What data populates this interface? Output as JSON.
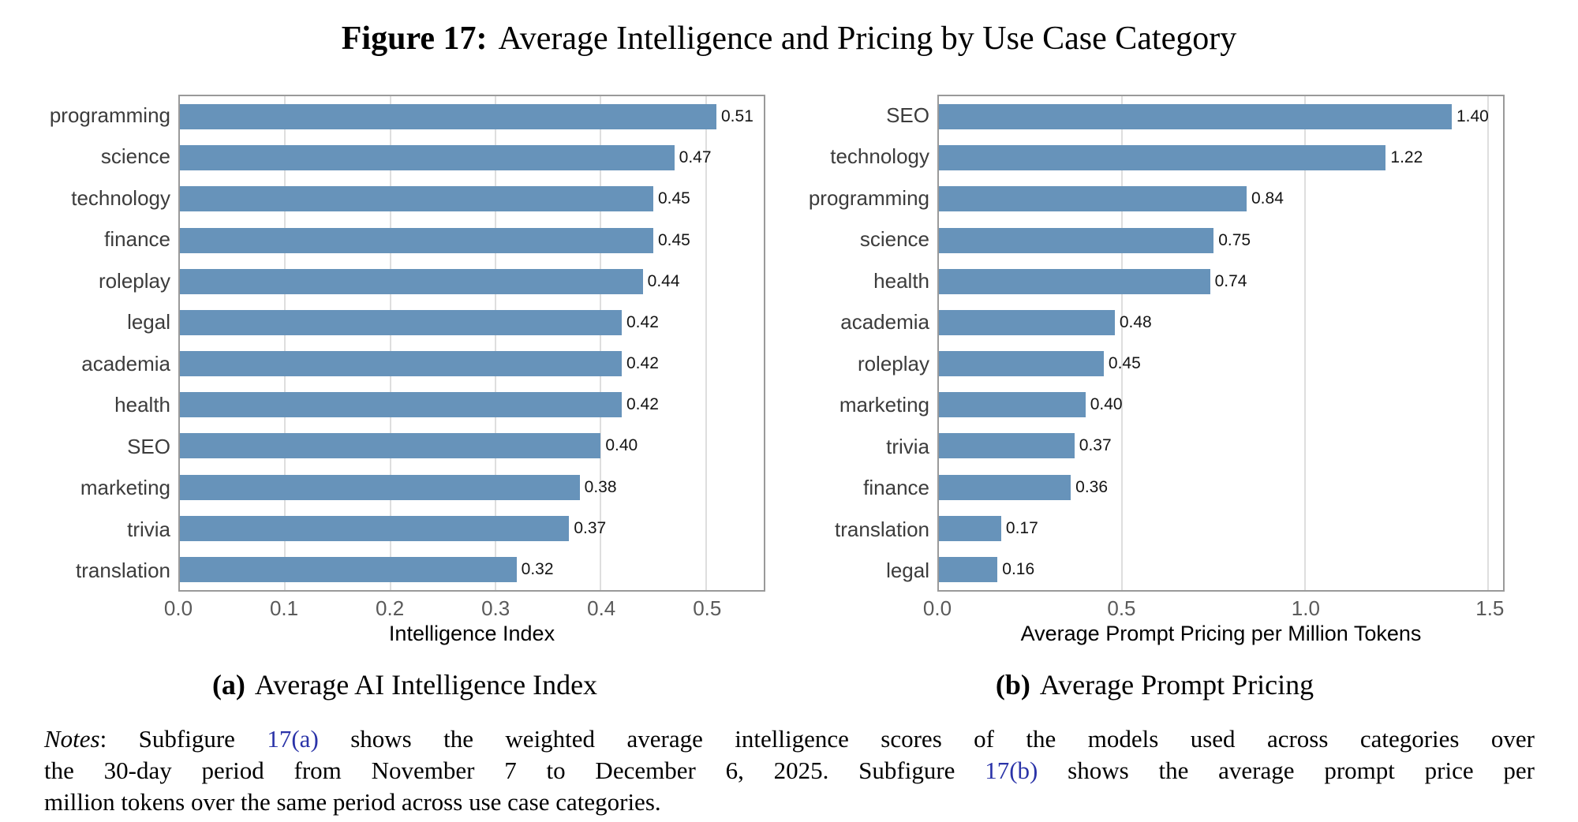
{
  "title": {
    "bold": "Figure 17:",
    "rest": "Average Intelligence and Pricing by Use Case Category"
  },
  "colors": {
    "bar": "#6793ba",
    "spine": "#9a9a9a",
    "grid": "#dedede",
    "category_label": "#3c3c3c",
    "tick_label": "#5a5a5a",
    "value_label": "#141414",
    "axis_label": "#000000",
    "link": "#2a33a8",
    "background": "#ffffff"
  },
  "chart_data": [
    {
      "type": "bar",
      "orientation": "horizontal",
      "categories": [
        "programming",
        "science",
        "technology",
        "finance",
        "roleplay",
        "legal",
        "academia",
        "health",
        "SEO",
        "marketing",
        "trivia",
        "translation"
      ],
      "values": [
        0.51,
        0.47,
        0.45,
        0.45,
        0.44,
        0.42,
        0.42,
        0.42,
        0.4,
        0.38,
        0.37,
        0.32
      ],
      "value_labels": [
        "0.51",
        "0.47",
        "0.45",
        "0.45",
        "0.44",
        "0.42",
        "0.42",
        "0.42",
        "0.40",
        "0.38",
        "0.37",
        "0.32"
      ],
      "xlabel": "Intelligence Index",
      "ylabel": "",
      "xlim": [
        0,
        0.555
      ],
      "xticks": [
        0.0,
        0.1,
        0.2,
        0.3,
        0.4,
        0.5
      ],
      "xtick_labels": [
        "0.0",
        "0.1",
        "0.2",
        "0.3",
        "0.4",
        "0.5"
      ],
      "grid": "vertical",
      "legend": "none",
      "caption_label": "(a)",
      "caption_text": "Average AI Intelligence Index"
    },
    {
      "type": "bar",
      "orientation": "horizontal",
      "categories": [
        "SEO",
        "technology",
        "programming",
        "science",
        "health",
        "academia",
        "roleplay",
        "marketing",
        "trivia",
        "finance",
        "translation",
        "legal"
      ],
      "values": [
        1.4,
        1.22,
        0.84,
        0.75,
        0.74,
        0.48,
        0.45,
        0.4,
        0.37,
        0.36,
        0.17,
        0.16
      ],
      "value_labels": [
        "1.40",
        "1.22",
        "0.84",
        "0.75",
        "0.74",
        "0.48",
        "0.45",
        "0.40",
        "0.37",
        "0.36",
        "0.17",
        "0.16"
      ],
      "xlabel": "Average Prompt Pricing per Million Tokens",
      "ylabel": "",
      "xlim": [
        0,
        1.54
      ],
      "xticks": [
        0.0,
        0.5,
        1.0,
        1.5
      ],
      "xtick_labels": [
        "0.0",
        "0.5",
        "1.0",
        "1.5"
      ],
      "grid": "vertical",
      "legend": "none",
      "caption_label": "(b)",
      "caption_text": "Average Prompt Pricing"
    }
  ],
  "notes": {
    "lines": [
      [
        {
          "text": "Notes",
          "style": "italic"
        },
        {
          "text": ": Subfigure ",
          "style": "normal"
        },
        {
          "text": "17(a)",
          "style": "link",
          "name": "ref-link-17a"
        },
        {
          "text": " shows the weighted average intelligence scores of the models used across categories over",
          "style": "normal"
        }
      ],
      [
        {
          "text": "the 30-day period from November 7 to December 6, 2025. Subfigure ",
          "style": "normal"
        },
        {
          "text": "17(b)",
          "style": "link",
          "name": "ref-link-17b"
        },
        {
          "text": " shows the average prompt price per",
          "style": "normal"
        }
      ],
      [
        {
          "text": "million tokens over the same period across use case categories.",
          "style": "normal"
        }
      ]
    ]
  }
}
